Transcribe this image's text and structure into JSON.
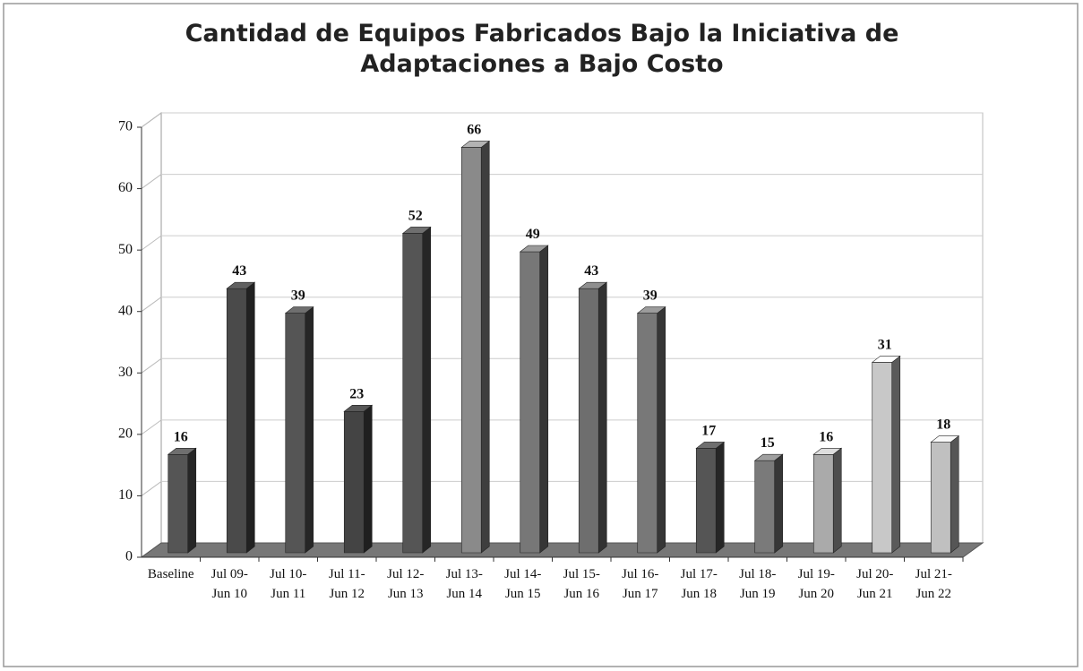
{
  "chart_data": {
    "type": "bar",
    "title": "Cantidad de Equipos Fabricados Bajo la Iniciativa de\nAdaptaciones a Bajo Costo",
    "categories": [
      "Baseline",
      "Jul 09-\nJun 10",
      "Jul 10-\nJun 11",
      "Jul 11-\nJun 12",
      "Jul 12-\nJun 13",
      "Jul 13-\nJun 14",
      "Jul 14-\nJun 15",
      "Jul 15-\nJun 16",
      "Jul 16-\nJun 17",
      "Jul 17-\nJun 18",
      "Jul 18-\nJun 19",
      "Jul 19-\nJun 20",
      "Jul 20-\nJun 21",
      "Jul 21-\nJun 22"
    ],
    "values": [
      16,
      43,
      39,
      23,
      52,
      66,
      49,
      43,
      39,
      17,
      15,
      16,
      31,
      18
    ],
    "colors": [
      "#555555",
      "#4a4a4a",
      "#555555",
      "#444444",
      "#555555",
      "#8a8a8a",
      "#777777",
      "#6e6e6e",
      "#787878",
      "#555555",
      "#7a7a7a",
      "#aaaaaa",
      "#c8c8c8",
      "#c0c0c0"
    ],
    "ylim": [
      0,
      70
    ],
    "yticks": [
      0,
      10,
      20,
      30,
      40,
      50,
      60,
      70
    ],
    "grid": true
  }
}
